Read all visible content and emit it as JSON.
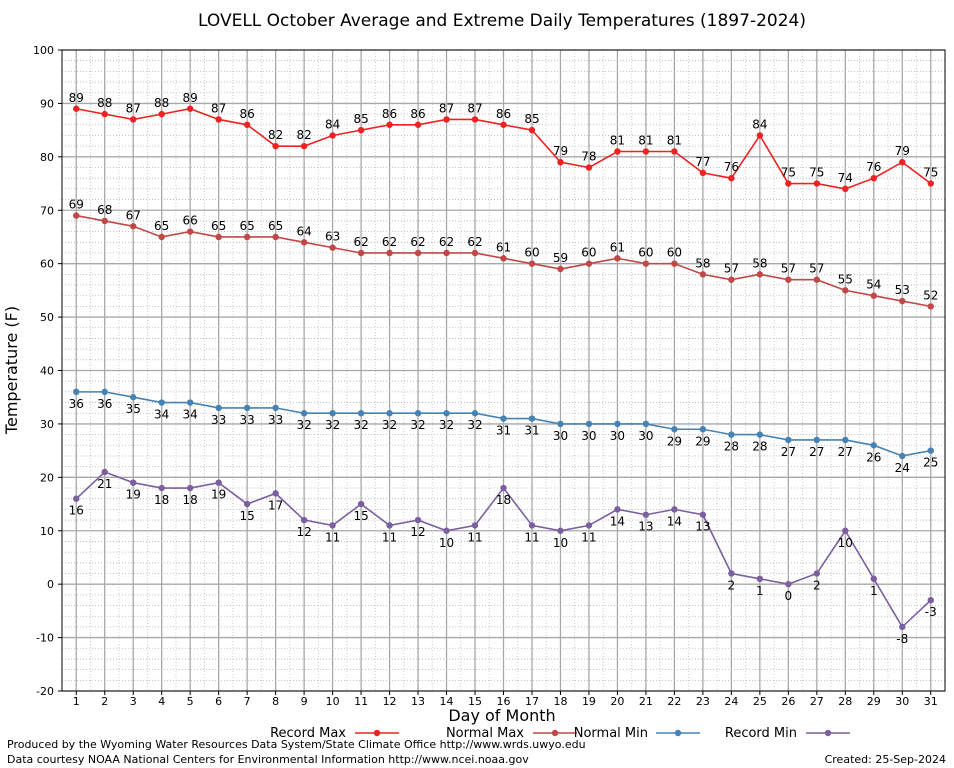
{
  "chart_data": {
    "type": "line",
    "title": "LOVELL October Average and Extreme Daily Temperatures (1897-2024)",
    "xlabel": "Day of Month",
    "ylabel": "Temperature (F)",
    "x": [
      1,
      2,
      3,
      4,
      5,
      6,
      7,
      8,
      9,
      10,
      11,
      12,
      13,
      14,
      15,
      16,
      17,
      18,
      19,
      20,
      21,
      22,
      23,
      24,
      25,
      26,
      27,
      28,
      29,
      30,
      31
    ],
    "xlim": [
      0.5,
      31.5
    ],
    "ylim": [
      -20,
      100
    ],
    "yticks": [
      -20,
      -10,
      0,
      10,
      20,
      30,
      40,
      50,
      60,
      70,
      80,
      90,
      100
    ],
    "grid": true,
    "legend_position": "bottom",
    "series": [
      {
        "name": "Record Max",
        "color": "#ee2222",
        "label_pos": "above",
        "values": [
          89,
          88,
          87,
          88,
          89,
          87,
          86,
          82,
          82,
          84,
          85,
          86,
          86,
          87,
          87,
          86,
          85,
          79,
          78,
          81,
          81,
          81,
          77,
          76,
          84,
          75,
          75,
          74,
          76,
          79,
          75
        ]
      },
      {
        "name": "Normal Max",
        "color": "#c04848",
        "label_pos": "above",
        "values": [
          69,
          68,
          67,
          65,
          66,
          65,
          65,
          65,
          64,
          63,
          62,
          62,
          62,
          62,
          62,
          61,
          60,
          59,
          60,
          61,
          60,
          60,
          58,
          57,
          58,
          57,
          57,
          55,
          54,
          53,
          52
        ]
      },
      {
        "name": "Normal Min",
        "color": "#4682b4",
        "label_pos": "below",
        "values": [
          36,
          36,
          35,
          34,
          34,
          33,
          33,
          33,
          32,
          32,
          32,
          32,
          32,
          32,
          32,
          31,
          31,
          30,
          30,
          30,
          30,
          29,
          29,
          28,
          28,
          27,
          27,
          27,
          26,
          24,
          25
        ]
      },
      {
        "name": "Record Min",
        "color": "#7b5fa0",
        "label_pos": "below",
        "values": [
          16,
          21,
          19,
          18,
          18,
          19,
          15,
          17,
          12,
          11,
          15,
          11,
          12,
          10,
          11,
          18,
          11,
          10,
          11,
          14,
          13,
          14,
          13,
          2,
          1,
          0,
          2,
          10,
          1,
          -8,
          -3
        ]
      }
    ]
  },
  "footer": {
    "produced_by": "Produced by the Wyoming Water Resources Data System/State Climate Office http://www.wrds.uwyo.edu",
    "courtesy": "Data courtesy NOAA National Centers for Environmental Information http://www.ncei.noaa.gov",
    "created": "Created:  25-Sep-2024"
  }
}
